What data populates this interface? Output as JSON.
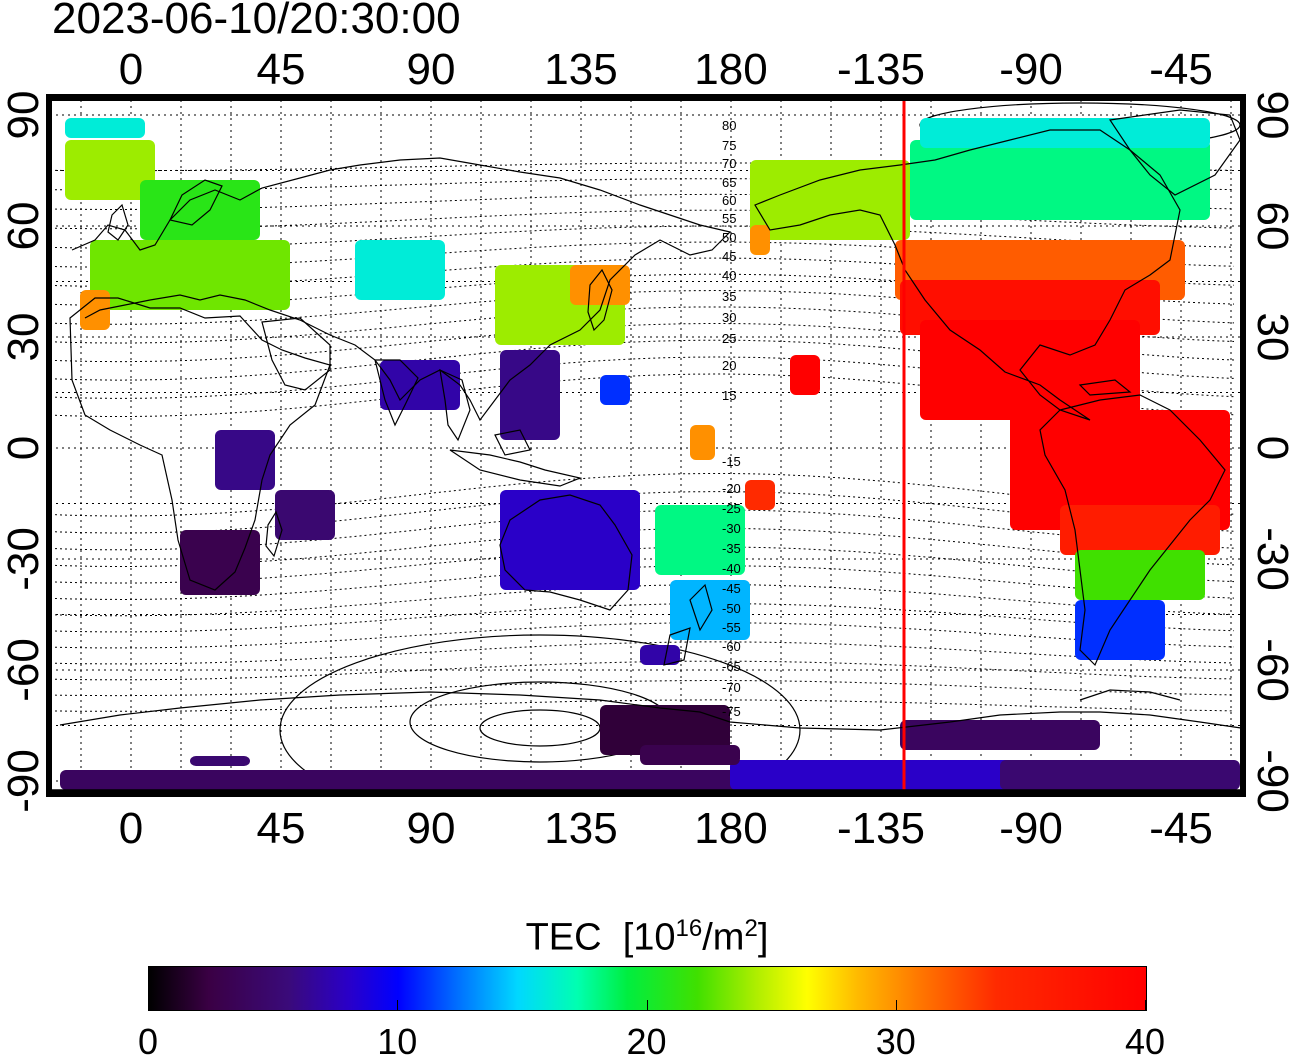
{
  "timestamp": "2023-06-10/20:30:00",
  "top_axis_labels": [
    "0",
    "45",
    "90",
    "135",
    "180",
    "-135",
    "-90",
    "-45"
  ],
  "bottom_axis_labels": [
    "0",
    "45",
    "90",
    "135",
    "180",
    "-135",
    "-90",
    "-45"
  ],
  "left_axis_labels": [
    "90",
    "60",
    "30",
    "0",
    "-30",
    "-60",
    "-90"
  ],
  "right_axis_labels": [
    "90",
    "60",
    "30",
    "0",
    "-30",
    "-60",
    "-90"
  ],
  "contour_labels": [
    "80",
    "75",
    "70",
    "65",
    "60",
    "55",
    "50",
    "45",
    "40",
    "35",
    "30",
    "25",
    "20",
    "15",
    "-15",
    "-20",
    "-25",
    "-30",
    "-35",
    "-40",
    "-45",
    "-50",
    "-55",
    "-60",
    "-65",
    "-70",
    "-75"
  ],
  "colorbar": {
    "title_main": "TEC  [10",
    "title_sup1": "16",
    "title_mid": "/m",
    "title_sup2": "2",
    "title_end": "]",
    "min": 0,
    "max": 40,
    "tick_labels": [
      "0",
      "10",
      "20",
      "30",
      "40"
    ]
  },
  "terminator_color": "#ff0000",
  "map_data": {
    "type": "heatmap",
    "variable": "TEC",
    "longitude_ticks": [
      0,
      45,
      90,
      135,
      180,
      -135,
      -90,
      -45
    ],
    "latitude_ticks": [
      90,
      60,
      30,
      0,
      -30,
      -60,
      -90
    ],
    "value_range": [
      0,
      40
    ],
    "regions": [
      {
        "region": "Europe",
        "approx_tec": 22
      },
      {
        "region": "North America",
        "approx_tec": 40
      },
      {
        "region": "South America",
        "approx_tec": 40
      },
      {
        "region": "East Asia",
        "approx_tec": 25
      },
      {
        "region": "Southern Africa",
        "approx_tec": 3
      },
      {
        "region": "Australia",
        "approx_tec": 8
      },
      {
        "region": "New Zealand",
        "approx_tec": 17
      },
      {
        "region": "Antarctica",
        "approx_tec": 4
      }
    ]
  }
}
